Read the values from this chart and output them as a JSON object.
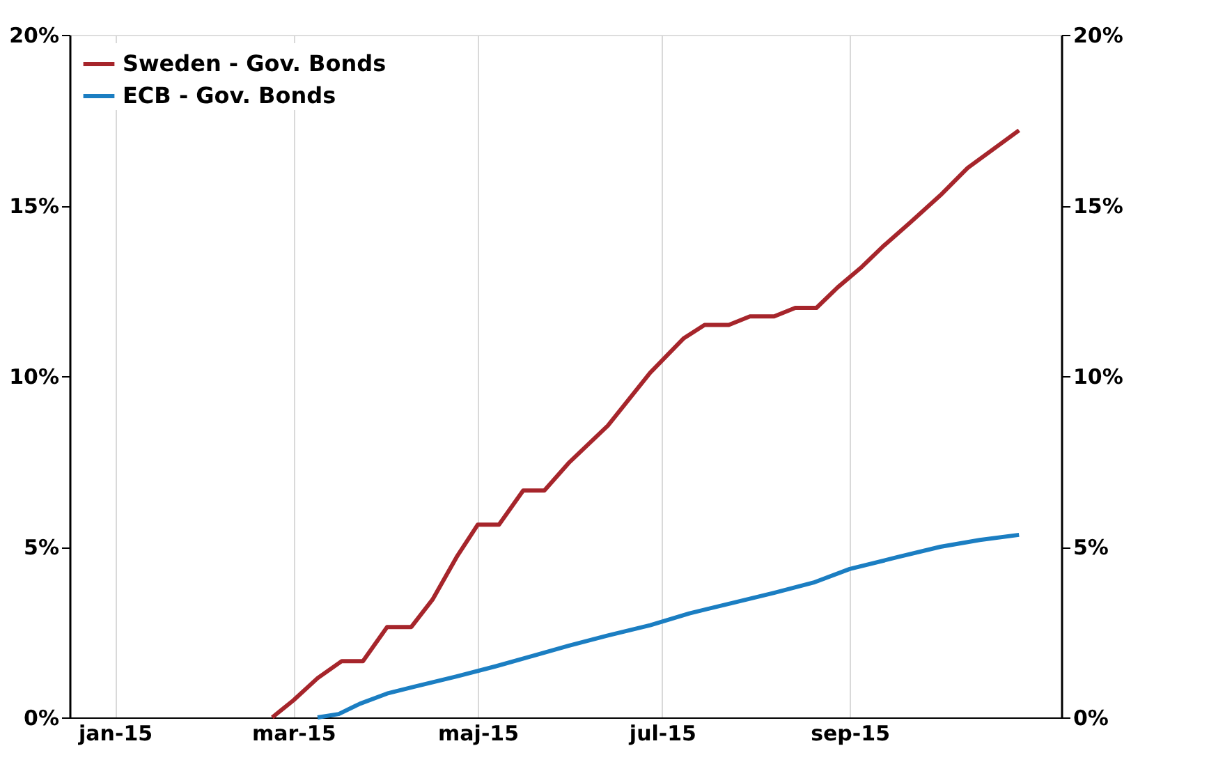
{
  "chart_data": {
    "type": "line",
    "legend": "top left",
    "grid": "x",
    "line_style": "solid",
    "marker": "none",
    "xlim": [
      "2014-12-17",
      "2015-11-10"
    ],
    "xticks": [
      {
        "value": "2015-01-01",
        "label": "jan-15"
      },
      {
        "value": "2015-03-01",
        "label": "mar-15"
      },
      {
        "value": "2015-05-01",
        "label": "maj-15"
      },
      {
        "value": "2015-07-01",
        "label": "jul-15"
      },
      {
        "value": "2015-09-01",
        "label": "sep-15"
      }
    ],
    "ylim": [
      0,
      20
    ],
    "yticks": [
      {
        "value": 0,
        "label": "0%"
      },
      {
        "value": 5,
        "label": "5%"
      },
      {
        "value": 10,
        "label": "10%"
      },
      {
        "value": 15,
        "label": "15%"
      },
      {
        "value": 20,
        "label": "20%"
      }
    ],
    "y2lim": [
      0,
      20
    ],
    "y2ticks": [
      {
        "value": 0,
        "label": "0%"
      },
      {
        "value": 5,
        "label": "5%"
      },
      {
        "value": 10,
        "label": "10%"
      },
      {
        "value": 15,
        "label": "15%"
      },
      {
        "value": 20,
        "label": "20%"
      }
    ],
    "series": [
      {
        "name": "Sweden - Gov. Bonds",
        "color": "#a6252b",
        "x": [
          "2015-02-22",
          "2015-03-01",
          "2015-03-09",
          "2015-03-17",
          "2015-03-24",
          "2015-04-01",
          "2015-04-09",
          "2015-04-16",
          "2015-04-24",
          "2015-05-01",
          "2015-05-08",
          "2015-05-16",
          "2015-05-23",
          "2015-05-31",
          "2015-06-13",
          "2015-06-27",
          "2015-07-08",
          "2015-07-15",
          "2015-07-23",
          "2015-07-30",
          "2015-08-07",
          "2015-08-14",
          "2015-08-21",
          "2015-08-28",
          "2015-09-05",
          "2015-09-12",
          "2015-09-21",
          "2015-10-01",
          "2015-10-10",
          "2015-10-27"
        ],
        "values": [
          0,
          0.5,
          1.15,
          1.65,
          1.65,
          2.65,
          2.65,
          3.45,
          4.7,
          5.65,
          5.65,
          6.65,
          6.65,
          7.45,
          8.55,
          10.1,
          11.1,
          11.5,
          11.5,
          11.75,
          11.75,
          12.0,
          12.0,
          12.6,
          13.2,
          13.8,
          14.5,
          15.3,
          16.1,
          17.2
        ]
      },
      {
        "name": "ECB - Gov. Bonds",
        "color": "#1b7ec2",
        "x": [
          "2015-03-09",
          "2015-03-16",
          "2015-03-23",
          "2015-04-01",
          "2015-04-10",
          "2015-04-24",
          "2015-05-07",
          "2015-05-19",
          "2015-05-31",
          "2015-06-13",
          "2015-06-27",
          "2015-07-10",
          "2015-07-24",
          "2015-08-07",
          "2015-08-20",
          "2015-09-01",
          "2015-09-17",
          "2015-10-01",
          "2015-10-14",
          "2015-10-27"
        ],
        "values": [
          0,
          0.1,
          0.4,
          0.7,
          0.9,
          1.2,
          1.5,
          1.8,
          2.1,
          2.4,
          2.7,
          3.05,
          3.35,
          3.65,
          3.95,
          4.35,
          4.7,
          5.0,
          5.2,
          5.35
        ]
      }
    ]
  }
}
